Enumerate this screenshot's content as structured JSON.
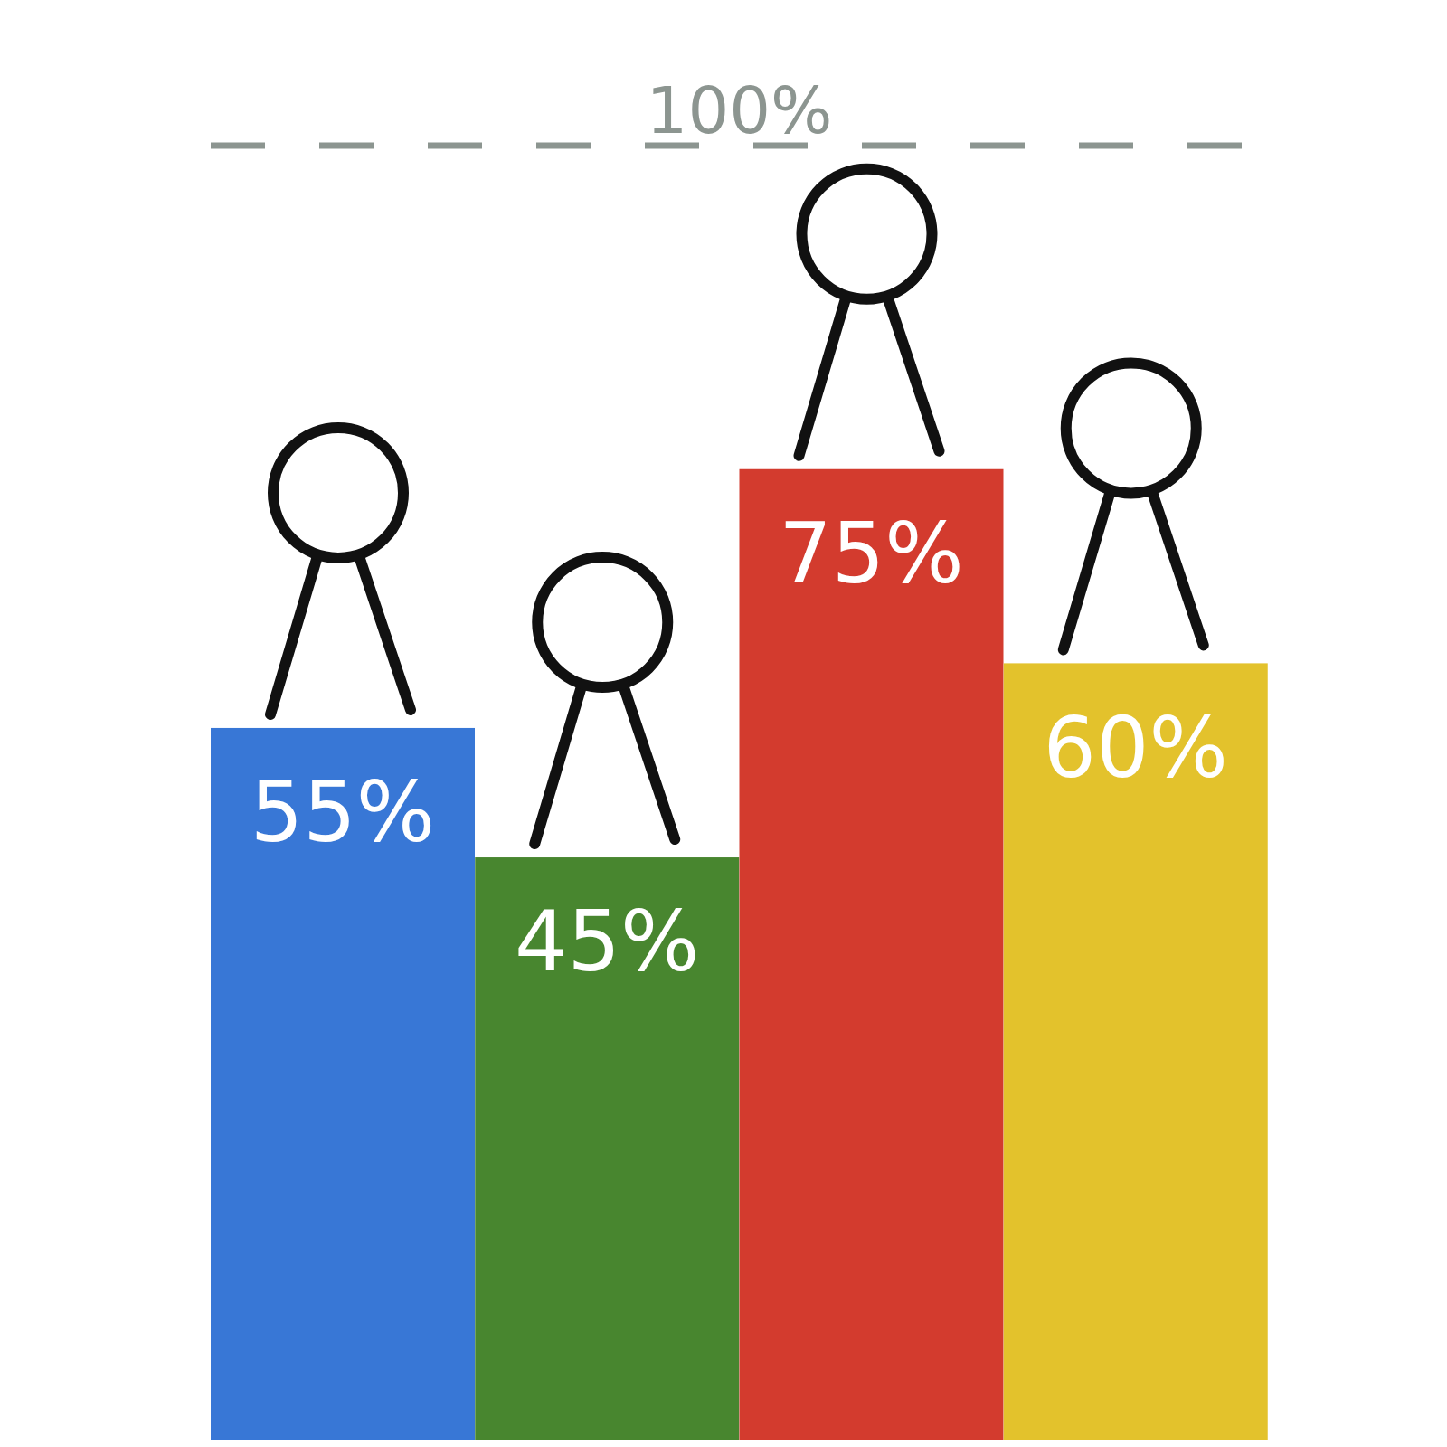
{
  "chart_data": {
    "type": "bar",
    "categories": [
      null,
      null,
      null,
      null
    ],
    "values": [
      55,
      45,
      75,
      60
    ],
    "value_labels": [
      "55%",
      "45%",
      "75%",
      "60%"
    ],
    "colors": [
      "#3877d6",
      "#48862f",
      "#d33b2e",
      "#e3c22c"
    ],
    "ylim": [
      0,
      100
    ],
    "data_labels": true,
    "tick_labels": false,
    "annotations": [
      {
        "y": 100,
        "text": "100%"
      }
    ]
  }
}
